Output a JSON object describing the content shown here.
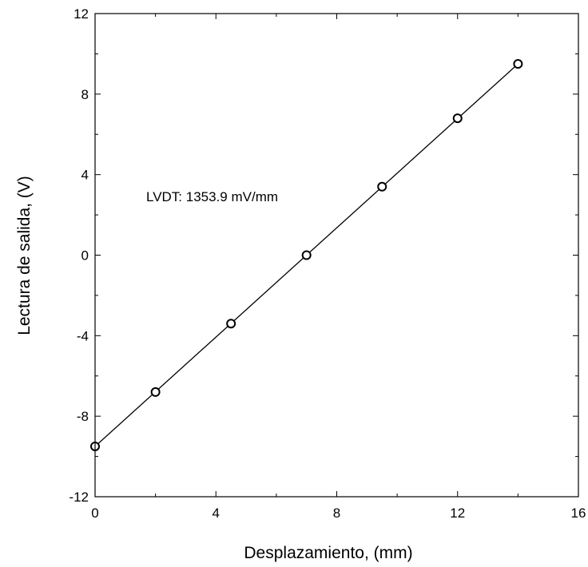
{
  "chart_data": {
    "type": "scatter",
    "title": "",
    "xlabel": "Desplazamiento, (mm)",
    "ylabel": "Lectura de salida, (V)",
    "xlim": [
      0,
      16
    ],
    "ylim": [
      -12,
      12
    ],
    "xticks": [
      0,
      4,
      8,
      12,
      16
    ],
    "yticks": [
      -12,
      -8,
      -4,
      0,
      4,
      8,
      12
    ],
    "xtick_labels": [
      "0",
      "4",
      "8",
      "12",
      "16"
    ],
    "ytick_labels": [
      "-12",
      "-8",
      "-4",
      "0",
      "4",
      "8",
      "12"
    ],
    "grid": false,
    "series": [
      {
        "x": [
          0,
          2,
          4.5,
          7,
          9.5,
          12,
          14
        ],
        "y": [
          -9.5,
          -6.8,
          -3.4,
          0,
          3.4,
          6.8,
          9.5
        ],
        "marker": "open-circle"
      }
    ],
    "fit_line": {
      "x": [
        0,
        14
      ],
      "y": [
        -9.5,
        9.5
      ]
    },
    "annotation": "LVDT: 1353.9 mV/mm"
  }
}
